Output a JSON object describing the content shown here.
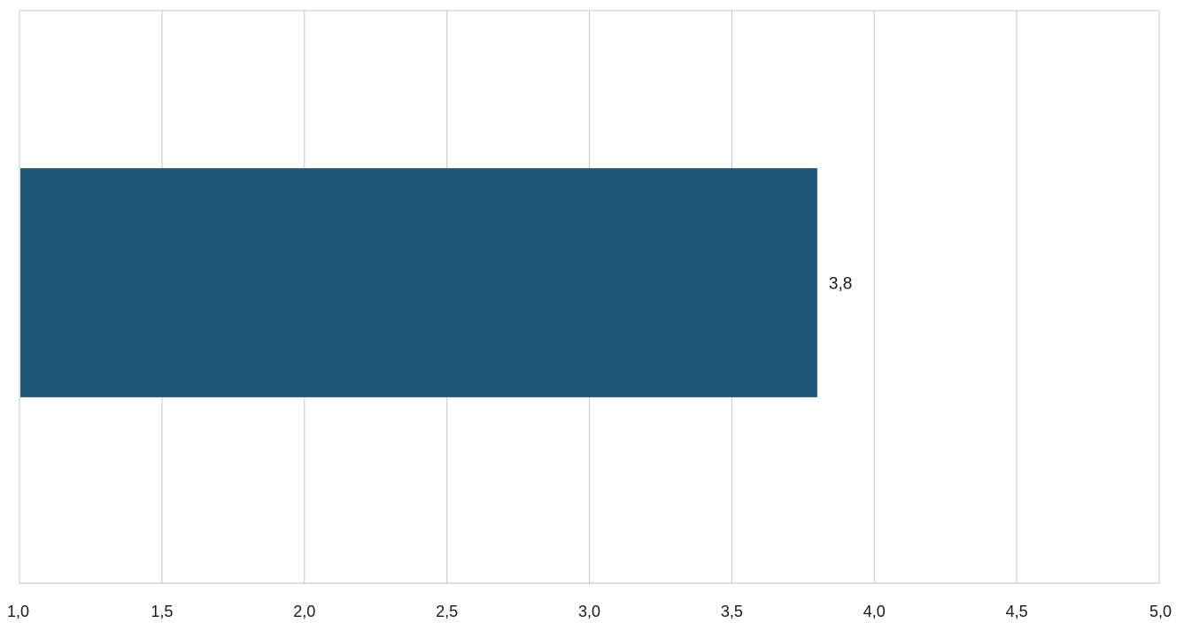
{
  "chart_data": {
    "type": "bar",
    "orientation": "horizontal",
    "categories": [
      ""
    ],
    "values": [
      3.8
    ],
    "value_labels": [
      "3,8"
    ],
    "xlim": [
      1.0,
      5.0
    ],
    "x_ticks": [
      1.0,
      1.5,
      2.0,
      2.5,
      3.0,
      3.5,
      4.0,
      4.5,
      5.0
    ],
    "x_tick_labels": [
      "1,0",
      "1,5",
      "2,0",
      "2,5",
      "3,0",
      "3,5",
      "4,0",
      "4,5",
      "5,0"
    ],
    "title": "",
    "xlabel": "",
    "ylabel": "",
    "grid": "vertical",
    "legend": "none",
    "colors": {
      "bar": "#1f5878",
      "grid": "#c8c8c8",
      "axis": "#bdbdbd",
      "text": "#1a1a1a"
    }
  }
}
